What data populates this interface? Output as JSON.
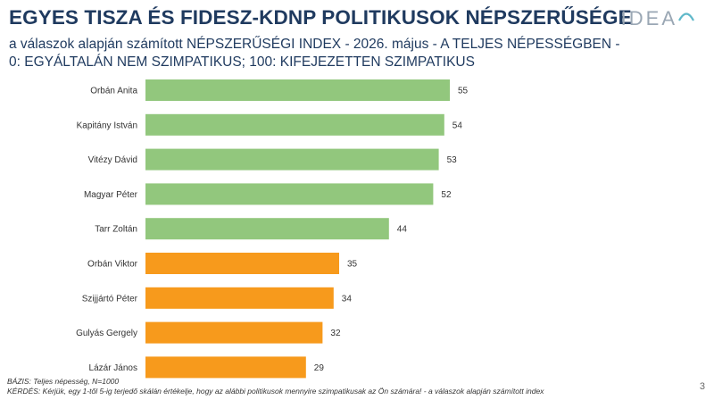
{
  "header": {
    "title": "EGYES TISZA ÉS FIDESZ-KDNP POLITIKUSOK NÉPSZERŰSÉGE",
    "subtitle": "a válaszok alapján számított NÉPSZERŰSÉGI INDEX - 2026. május - A TELJES NÉPESSÉGBEN - 0: EGYÁLTALÁN NEM SZIMPATIKUS; 100: KIFEJEZETTEN SZIMPATIKUS"
  },
  "logo": {
    "text": "IDEA"
  },
  "footer": {
    "base": "BÁZIS: Teljes népesség, N=1000",
    "question": "KÉRDÉS: Kérjük, egy 1-től 5-ig terjedő skálán értékelje, hogy az alábbi politikusok mennyire szimpatikusak az Ön számára! - a válaszok alapján számított index",
    "page": "3"
  },
  "colors": {
    "tisza": "#92c77d",
    "fidesz": "#f79a1c",
    "title": "#1f3a5f"
  },
  "chart_data": {
    "type": "bar",
    "orientation": "horizontal",
    "categories": [
      "Orbán Anita",
      "Kapitány István",
      "Vitézy Dávid",
      "Magyar Péter",
      "Tarr Zoltán",
      "Orbán Viktor",
      "Szijjártó Péter",
      "Gulyás Gergely",
      "Lázár János"
    ],
    "values": [
      55,
      54,
      53,
      52,
      44,
      35,
      34,
      32,
      29
    ],
    "bar_colors": [
      "#92c77d",
      "#92c77d",
      "#92c77d",
      "#92c77d",
      "#92c77d",
      "#f79a1c",
      "#f79a1c",
      "#f79a1c",
      "#f79a1c"
    ],
    "xlim": [
      0,
      100
    ],
    "grid": false,
    "legend": "none",
    "data_labels": true
  }
}
